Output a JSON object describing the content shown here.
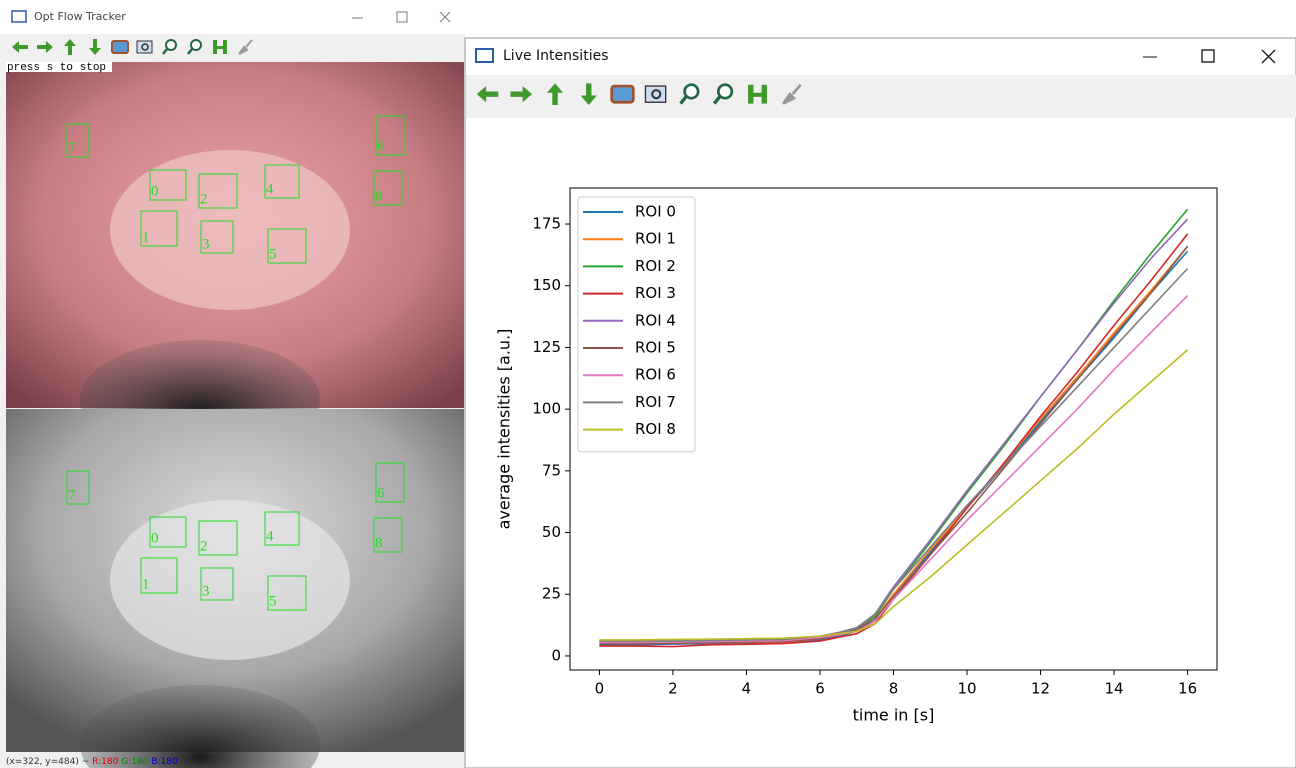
{
  "left_window": {
    "title": "Opt Flow Tracker",
    "overlay_text": "press s to stop",
    "roi_labels": [
      "0",
      "1",
      "2",
      "3",
      "4",
      "5",
      "6",
      "7",
      "8"
    ],
    "status": {
      "coords": "(x=322, y=484) ~",
      "r": "R:180",
      "g": "G:180",
      "b": "B:180"
    }
  },
  "right_window": {
    "title": "Live Intensities"
  },
  "chart_data": {
    "type": "line",
    "xlabel": "time in [s]",
    "ylabel": "average intensities [a.u.]",
    "x": [
      0,
      1,
      2,
      3,
      4,
      5,
      6,
      6.5,
      7,
      7.5,
      8,
      9,
      10,
      11,
      12,
      13,
      14,
      15,
      16
    ],
    "series": [
      {
        "name": "ROI 0",
        "color": "#1f77b4",
        "values": [
          4.5,
          4.5,
          4.8,
          5,
          5,
          5.2,
          6.5,
          8,
          10,
          15,
          25,
          42,
          60,
          77,
          95,
          112,
          129,
          147,
          164
        ]
      },
      {
        "name": "ROI 1",
        "color": "#ff7f0e",
        "values": [
          5,
          5,
          5.2,
          5.4,
          5.5,
          5.6,
          7,
          8.5,
          10.5,
          15,
          25,
          43,
          60,
          78,
          96,
          113,
          131,
          148,
          166
        ]
      },
      {
        "name": "ROI 2",
        "color": "#2ca02c",
        "values": [
          6,
          6,
          6.2,
          6.3,
          6.3,
          6.5,
          7.5,
          9,
          11,
          16,
          27,
          46,
          66,
          85,
          105,
          124,
          144,
          163,
          181
        ]
      },
      {
        "name": "ROI 3",
        "color": "#d62728",
        "values": [
          4,
          4,
          3.8,
          4.5,
          4.7,
          5,
          6,
          7.5,
          9,
          13,
          23,
          41,
          60,
          78,
          97,
          115,
          134,
          152,
          171
        ]
      },
      {
        "name": "ROI 4",
        "color": "#9467bd",
        "values": [
          5.5,
          5.5,
          5.6,
          5.8,
          6,
          6.2,
          7.5,
          9,
          11,
          17,
          28,
          47,
          67,
          86,
          105,
          124,
          143,
          161,
          177
        ]
      },
      {
        "name": "ROI 5",
        "color": "#8c564b",
        "values": [
          5,
          5,
          5.2,
          5.5,
          5.6,
          5.8,
          7,
          8.5,
          10.5,
          15,
          24,
          41,
          58,
          76,
          94,
          112,
          130,
          147,
          166
        ]
      },
      {
        "name": "ROI 6",
        "color": "#e377c2",
        "values": [
          5.5,
          5.5,
          5.6,
          5.8,
          6,
          6.2,
          7.5,
          8.5,
          10,
          14,
          23,
          39,
          55,
          70,
          85,
          100,
          116,
          131,
          146
        ]
      },
      {
        "name": "ROI 7",
        "color": "#7f7f7f",
        "values": [
          6,
          6,
          6.1,
          6.3,
          6.5,
          6.7,
          8,
          9.5,
          11.5,
          17,
          27,
          44,
          61,
          77,
          93,
          109,
          125,
          141,
          157
        ]
      },
      {
        "name": "ROI 8",
        "color": "#bcbd22",
        "values": [
          6.5,
          6.5,
          6.7,
          6.8,
          7,
          7.2,
          8,
          9,
          10,
          13,
          20,
          32,
          45,
          58,
          71,
          84,
          98,
          111,
          124
        ]
      }
    ],
    "xlim": [
      -0.8,
      16.8
    ],
    "ylim": [
      -5.7,
      189.6
    ],
    "xticks": [
      0,
      2,
      4,
      6,
      8,
      10,
      12,
      14,
      16
    ],
    "yticks": [
      0,
      25,
      50,
      75,
      100,
      125,
      150,
      175
    ],
    "legend": "upper left"
  }
}
